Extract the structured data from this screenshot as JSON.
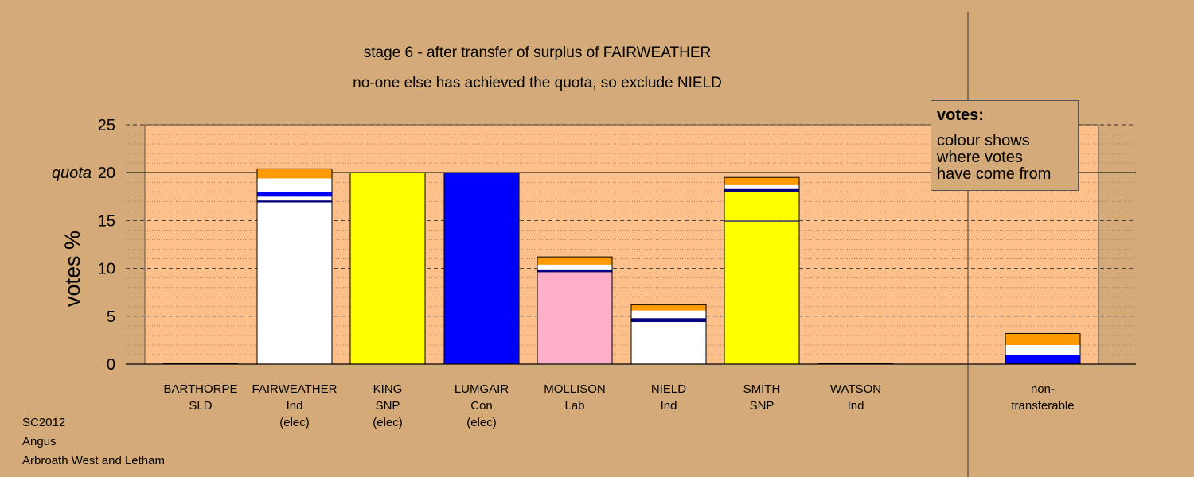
{
  "chart_data": {
    "type": "bar",
    "stacked": true,
    "title": "stage 6 - after transfer of surplus of FAIRWEATHER",
    "subtitle": "no-one else has achieved the quota, so exclude NIELD",
    "ylabel": "votes %",
    "ylim": [
      0,
      25
    ],
    "yticks": [
      "0",
      "5",
      "10",
      "15",
      "20",
      "25"
    ],
    "quota_label": "quota",
    "quota_value": 20,
    "legend": {
      "title": "votes:",
      "lines": [
        "colour shows",
        "where votes",
        "have come from"
      ]
    },
    "colors": {
      "orange": "#ff9900",
      "white": "#ffffff",
      "blue": "#0000ff",
      "navy": "#000080",
      "yellow": "#ffff00",
      "pink": "#ffb0c8",
      "background": "#d4aa78",
      "plot_area": "#fdc08a"
    },
    "categories": [
      {
        "name": "BARTHORPE",
        "party": "SLD",
        "status": "",
        "segments": []
      },
      {
        "name": "FAIRWEATHER",
        "party": "Ind",
        "status": "(elec)",
        "segments": [
          {
            "color": "white",
            "value": 16.9
          },
          {
            "color": "navy",
            "value": 0.2
          },
          {
            "color": "white",
            "value": 0.4
          },
          {
            "color": "blue",
            "value": 0.5
          },
          {
            "color": "white",
            "value": 1.4
          },
          {
            "color": "orange",
            "value": 1.0
          }
        ]
      },
      {
        "name": "KING",
        "party": "SNP",
        "status": "(elec)",
        "segments": [
          {
            "color": "yellow",
            "value": 20.0
          }
        ]
      },
      {
        "name": "LUMGAIR",
        "party": "Con",
        "status": "(elec)",
        "segments": [
          {
            "color": "blue",
            "value": 20.0
          }
        ]
      },
      {
        "name": "MOLLISON",
        "party": "Lab",
        "status": "",
        "segments": [
          {
            "color": "pink",
            "value": 9.6
          },
          {
            "color": "navy",
            "value": 0.3
          },
          {
            "color": "white",
            "value": 0.5
          },
          {
            "color": "orange",
            "value": 0.8
          }
        ]
      },
      {
        "name": "NIELD",
        "party": "Ind",
        "status": "",
        "segments": [
          {
            "color": "white",
            "value": 4.4
          },
          {
            "color": "navy",
            "value": 0.4
          },
          {
            "color": "white",
            "value": 0.8
          },
          {
            "color": "orange",
            "value": 0.6
          }
        ]
      },
      {
        "name": "SMITH",
        "party": "SNP",
        "status": "",
        "segments": [
          {
            "color": "yellow",
            "value": 14.9
          },
          {
            "color": "navy",
            "value": 0.1
          },
          {
            "color": "yellow",
            "value": 3.0
          },
          {
            "color": "navy",
            "value": 0.3
          },
          {
            "color": "white",
            "value": 0.4
          },
          {
            "color": "orange",
            "value": 0.8
          }
        ]
      },
      {
        "name": "WATSON",
        "party": "Ind",
        "status": "",
        "segments": []
      },
      {
        "name": "non-",
        "party": "transferable",
        "status": "",
        "segments": [
          {
            "color": "navy",
            "value": 0.1
          },
          {
            "color": "blue",
            "value": 0.9
          },
          {
            "color": "white",
            "value": 1.0
          },
          {
            "color": "orange",
            "value": 1.2
          }
        ]
      }
    ]
  },
  "footer": {
    "line1": "SC2012",
    "line2": "Angus",
    "line3": "Arbroath West and Letham"
  }
}
